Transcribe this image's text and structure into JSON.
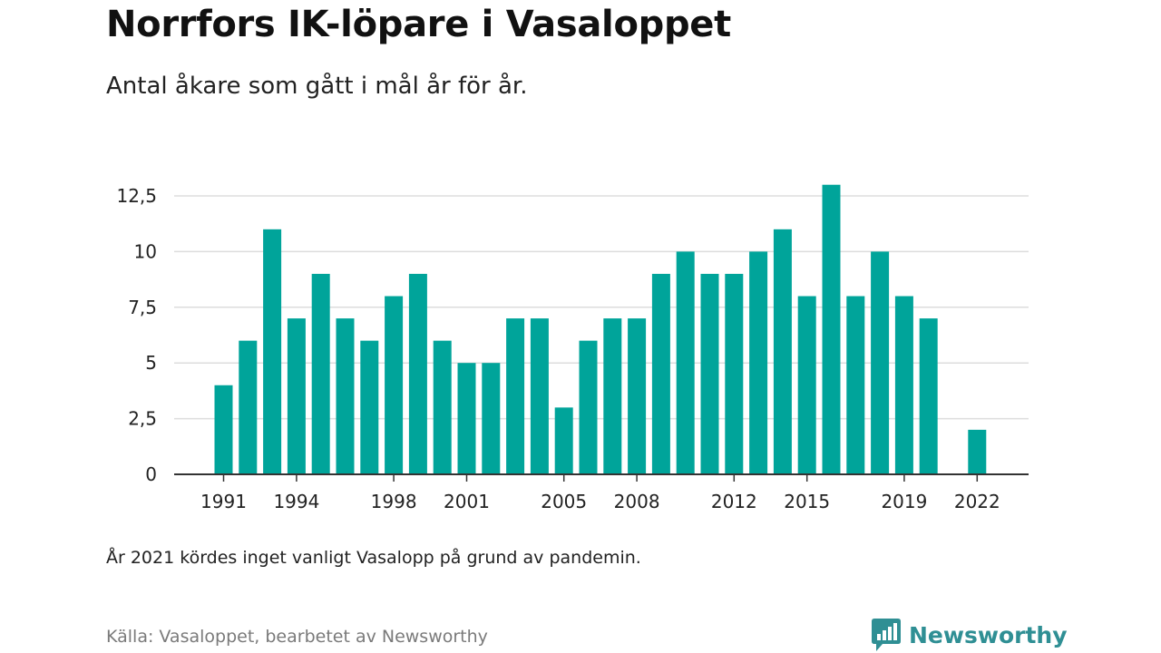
{
  "header": {
    "title": "Norrfors IK-löpare i Vasaloppet",
    "subtitle": "Antal åkare som gått i mål år för år."
  },
  "footer": {
    "note": "År 2021 kördes inget vanligt Vasalopp på grund av pandemin.",
    "source": "Källa: Vasaloppet, bearbetet av Newsworthy",
    "brand": "Newsworthy"
  },
  "colors": {
    "bar": "#00a49a",
    "grid": "#dddddd",
    "axis": "#333333",
    "brand": "#2f8f94"
  },
  "brand_icon": "newsworthy-logo-icon",
  "chart_data": {
    "type": "bar",
    "title": "Norrfors IK-löpare i Vasaloppet",
    "subtitle": "Antal åkare som gått i mål år för år.",
    "xlabel": "",
    "ylabel": "",
    "x": [
      1991,
      1992,
      1993,
      1994,
      1995,
      1996,
      1997,
      1998,
      1999,
      2000,
      2001,
      2002,
      2003,
      2004,
      2005,
      2006,
      2007,
      2008,
      2009,
      2010,
      2011,
      2012,
      2013,
      2014,
      2015,
      2016,
      2017,
      2018,
      2019,
      2020,
      2021,
      2022
    ],
    "values": [
      4,
      6,
      11,
      7,
      9,
      7,
      6,
      8,
      9,
      6,
      5,
      5,
      7,
      7,
      3,
      6,
      7,
      7,
      9,
      10,
      9,
      9,
      10,
      11,
      8,
      13,
      8,
      10,
      8,
      7,
      null,
      2
    ],
    "ylim": [
      0,
      12.5
    ],
    "yticks": [
      0,
      2.5,
      5,
      7.5,
      10,
      12.5
    ],
    "ytick_labels": [
      "0",
      "2,5",
      "5",
      "7,5",
      "10",
      "12,5"
    ],
    "xtick_labels": [
      "1991",
      "1994",
      "1998",
      "2001",
      "2005",
      "2008",
      "2012",
      "2015",
      "2019",
      "2022"
    ],
    "grid": true,
    "legend": "none"
  }
}
